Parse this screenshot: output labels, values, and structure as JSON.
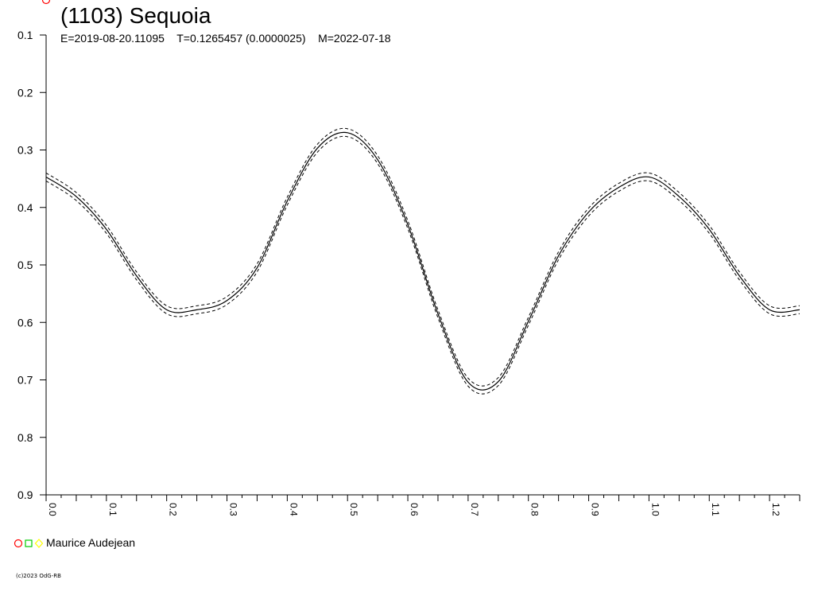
{
  "header": {
    "title": "(1103) Sequoia",
    "params": "E=2019-08-20.11095    T=0.1265457 (0.0000025)    M=2022-07-18"
  },
  "legend": {
    "observer": "Maurice Audejean",
    "marker_colors": [
      "#ff0000",
      "#00cc00",
      "#ffff00"
    ]
  },
  "footer": {
    "copyright": "(c)2023 OdG-RB"
  },
  "chart_data": {
    "type": "scatter",
    "title": "(1103) Sequoia",
    "xlabel": "",
    "ylabel": "",
    "xlim": [
      0.0,
      1.25
    ],
    "ylim": [
      0.9,
      0.1
    ],
    "y_inverted": true,
    "grid": false,
    "legend_position": "bottom-left",
    "x_ticks": [
      "0.0",
      "0.1",
      "0.2",
      "0.3",
      "0.4",
      "0.5",
      "0.6",
      "0.7",
      "0.8",
      "0.9",
      "1.0",
      "1.1",
      "1.2"
    ],
    "y_ticks": [
      "0.1",
      "0.2",
      "0.3",
      "0.4",
      "0.5",
      "0.6",
      "0.7",
      "0.8",
      "0.9"
    ],
    "series": [
      {
        "marker": "circle",
        "color": "#ff0000",
        "points": [
          [
            0.0
          ]
        ]
      }
    ],
    "fit_curve": {
      "color": "#000000",
      "x": [
        0.0,
        0.05,
        0.1,
        0.15,
        0.2,
        0.25,
        0.3,
        0.35,
        0.4,
        0.45,
        0.5,
        0.55,
        0.6,
        0.65,
        0.7,
        0.75,
        0.8,
        0.85,
        0.9,
        0.95,
        1.0,
        1.05,
        1.1,
        1.15,
        1.2,
        1.25
      ],
      "y": [
        0.347,
        0.381,
        0.438,
        0.519,
        0.578,
        0.578,
        0.562,
        0.505,
        0.389,
        0.297,
        0.27,
        0.317,
        0.43,
        0.585,
        0.704,
        0.703,
        0.598,
        0.484,
        0.408,
        0.365,
        0.347,
        0.381,
        0.438,
        0.519,
        0.578,
        0.578
      ]
    }
  }
}
